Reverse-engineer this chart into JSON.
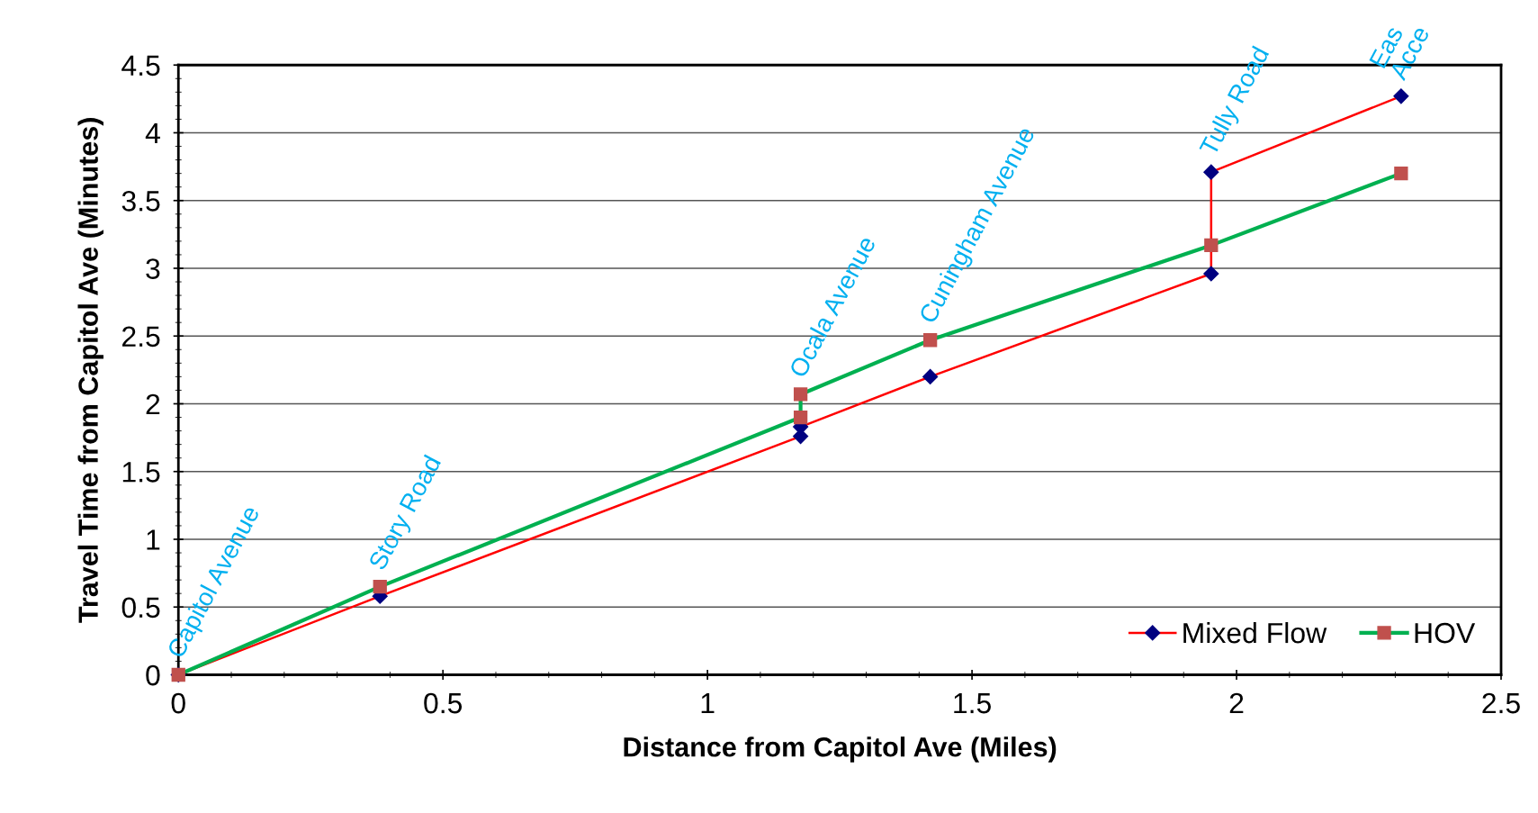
{
  "chart_data": {
    "type": "line",
    "xlabel": "Distance from Capitol Ave (Miles)",
    "ylabel": "Travel Time from Capitol Ave (Minutes)",
    "xlim": [
      0,
      2.5
    ],
    "xticks": [
      0,
      0.5,
      1,
      1.5,
      2,
      2.5
    ],
    "ylim": [
      0,
      4.5
    ],
    "yticks": [
      0,
      0.5,
      1,
      1.5,
      2,
      2.5,
      3,
      3.5,
      4,
      4.5
    ],
    "grid": "y",
    "legend": "bottom right",
    "line_style": "solid",
    "series": [
      {
        "name": "Mixed Flow",
        "color": "#ff0000",
        "marker": "diamond",
        "x": [
          0,
          0.381,
          1.176,
          1.176,
          1.421,
          1.952,
          1.952,
          2.311
        ],
        "values": [
          0,
          0.58,
          1.76,
          1.83,
          2.2,
          2.96,
          3.71,
          4.27
        ]
      },
      {
        "name": "HOV",
        "color": "#00b050",
        "marker": "square",
        "x": [
          0,
          0.381,
          1.176,
          1.176,
          1.421,
          1.952,
          2.311
        ],
        "values": [
          0,
          0.65,
          1.9,
          2.07,
          2.47,
          3.17,
          3.7
        ]
      }
    ],
    "annotations": [
      "Capitol Avenue",
      "Story Road",
      "Ocala Avenue",
      "Cuningham Avenue",
      "Tully Road",
      "Eas\nAcce"
    ]
  }
}
